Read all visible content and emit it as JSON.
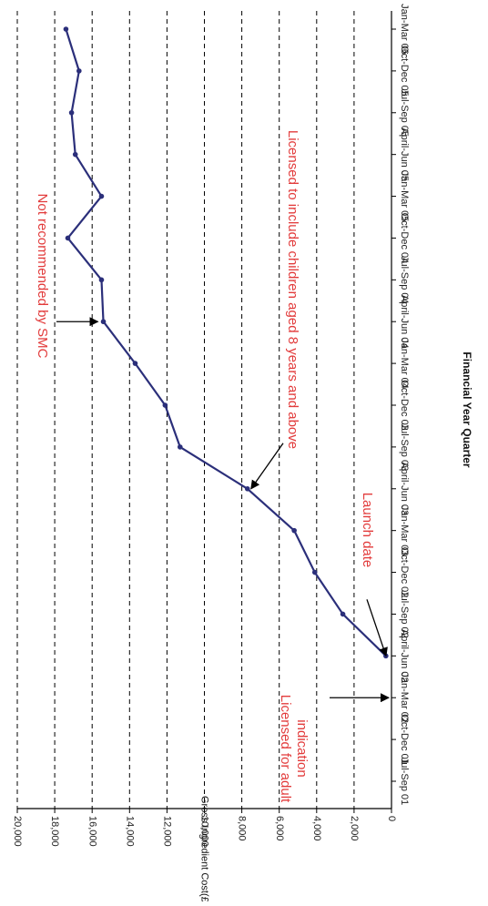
{
  "chart_data": {
    "type": "line",
    "rotated": "90deg-clockwise",
    "xlabel": "Financial Year Quarter",
    "ylabel": "Gross Ingredient Cost(£'s)",
    "categories": [
      "Jul-Sep 01",
      "Oct-Dec 01",
      "Jan-Mar 02",
      "April-Jun 02",
      "Jul-Sep 02",
      "Oct-Dec 02",
      "Jan-Mar 03",
      "April-Jun 03",
      "Jul-Sep 03",
      "Oct-Dec 03",
      "Jan-Mar 04",
      "April-Jun 04",
      "Jul-Sep 04",
      "Oct-Dec 04",
      "Jan-Mar 05",
      "April-Jun 05",
      "Jul-Sep 05",
      "Oct-Dec 05",
      "Jan-Mar 06"
    ],
    "y_ticks": [
      "0",
      "2,000",
      "4,000",
      "6,000",
      "8,000",
      "10,000",
      "12,000",
      "14,000",
      "16,000",
      "18,000",
      "20,000"
    ],
    "ylim": [
      0,
      20000
    ],
    "grid": "dashed horizontal at every 2,000",
    "series": [
      {
        "color": "#2b2f7a",
        "points": [
          {
            "x": "April-Jun 02",
            "y": 300
          },
          {
            "x": "Jul-Sep 02",
            "y": 2600
          },
          {
            "x": "Oct-Dec 02",
            "y": 4100
          },
          {
            "x": "Jan-Mar 03",
            "y": 5200
          },
          {
            "x": "April-Jun 03",
            "y": 7700
          },
          {
            "x": "Jul-Sep 03",
            "y": 11300
          },
          {
            "x": "Oct-Dec 03",
            "y": 12100
          },
          {
            "x": "Jan-Mar 04",
            "y": 13700
          },
          {
            "x": "April-Jun 04",
            "y": 15400
          },
          {
            "x": "Jul-Sep 04",
            "y": 15500
          },
          {
            "x": "Oct-Dec 04",
            "y": 17300
          },
          {
            "x": "Jan-Mar 05",
            "y": 15500
          },
          {
            "x": "April-Jun 05",
            "y": 16900
          },
          {
            "x": "Jul-Sep 05",
            "y": 17100
          },
          {
            "x": "Oct-Dec 05",
            "y": 16700
          },
          {
            "x": "Jan-Mar 06",
            "y": 17400
          }
        ]
      }
    ],
    "annotations": [
      {
        "text": "Licensed for adult indication",
        "lines": [
          "Licensed for adult",
          "indication"
        ],
        "arrow_at": "Jan-Mar 02"
      },
      {
        "text": "Launch date",
        "arrow_at": "April-Jun 02"
      },
      {
        "text": "Licensed to include children aged 8 years and above",
        "arrow_at": "April-Jun 03"
      },
      {
        "text": "Not recommended by SMC",
        "arrow_at": "April-Jun 04"
      }
    ],
    "colors": {
      "line": "#2b2f7a",
      "annotation": "#e23b3b",
      "grid": "#000000"
    }
  }
}
